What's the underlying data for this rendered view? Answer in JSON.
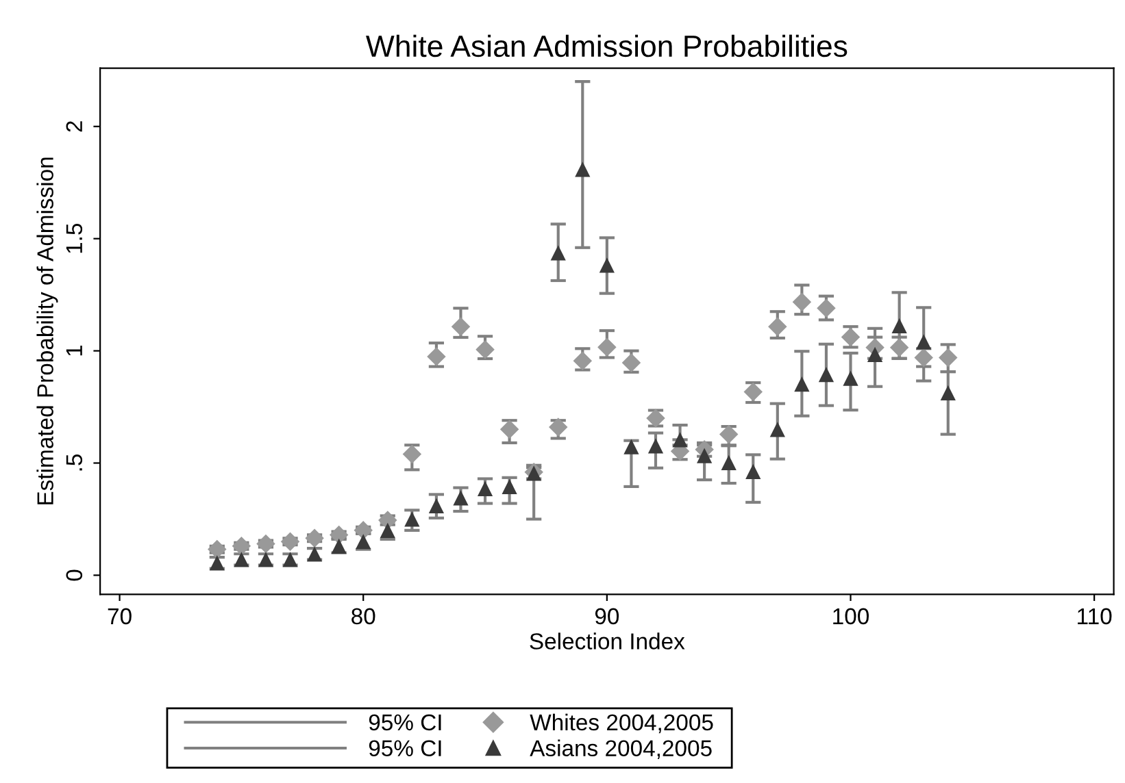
{
  "chart_data": {
    "type": "scatter",
    "title": "White Asian Admission Probabilities",
    "xlabel": "Selection Index",
    "ylabel": "Estimated Probability of Admission",
    "xlim": [
      69.2,
      110.8
    ],
    "xticks": [
      70,
      80,
      90,
      100,
      110
    ],
    "ylim": [
      -0.085,
      2.26
    ],
    "yticks": [
      0,
      {
        "value": 0.5,
        "label": ".5"
      },
      1,
      1.5,
      2
    ],
    "grid": false,
    "legend": "bottom",
    "annotations": [
      "95% CI",
      "95% CI"
    ],
    "series": [
      {
        "name": "Whites 2004,2005",
        "color": "#999999",
        "marker": "diamond",
        "x": [
          74,
          75,
          76,
          77,
          78,
          79,
          80,
          81,
          82,
          83,
          84,
          85,
          86,
          87,
          88,
          89,
          90,
          91,
          92,
          93,
          94,
          95,
          96,
          97,
          98,
          99,
          100,
          101,
          102,
          103,
          104
        ],
        "values": [
          0.116,
          0.13,
          0.14,
          0.15,
          0.165,
          0.18,
          0.2,
          0.245,
          0.54,
          0.974,
          1.108,
          1.006,
          0.65,
          0.46,
          0.66,
          0.955,
          1.016,
          0.947,
          0.7,
          0.553,
          0.56,
          0.628,
          0.817,
          1.108,
          1.218,
          1.19,
          1.061,
          1.015,
          1.015,
          0.97,
          0.97
        ],
        "errors": [
          [
            0.1,
            0.13
          ],
          [
            0.115,
            0.145
          ],
          [
            0.125,
            0.155
          ],
          [
            0.135,
            0.165
          ],
          [
            0.15,
            0.18
          ],
          [
            0.165,
            0.195
          ],
          [
            0.185,
            0.215
          ],
          [
            0.225,
            0.265
          ],
          [
            0.47,
            0.58
          ],
          [
            0.93,
            1.035
          ],
          [
            1.06,
            1.19
          ],
          [
            0.965,
            1.065
          ],
          [
            0.59,
            0.69
          ],
          [
            0.43,
            0.49
          ],
          [
            0.61,
            0.69
          ],
          [
            0.915,
            1.01
          ],
          [
            0.97,
            1.09
          ],
          [
            0.905,
            1.0
          ],
          [
            0.665,
            0.735
          ],
          [
            0.516,
            0.58
          ],
          [
            0.53,
            0.59
          ],
          [
            0.58,
            0.663
          ],
          [
            0.77,
            0.858
          ],
          [
            1.057,
            1.175
          ],
          [
            1.163,
            1.293
          ],
          [
            1.138,
            1.244
          ],
          [
            1.016,
            1.108
          ],
          [
            0.966,
            1.061
          ],
          [
            0.966,
            1.061
          ],
          [
            0.93,
            1.01
          ],
          [
            0.907,
            1.028
          ]
        ]
      },
      {
        "name": "Asians 2004,2005",
        "color": "#3a3a3a",
        "marker": "triangle",
        "x": [
          74,
          75,
          76,
          77,
          78,
          79,
          80,
          81,
          82,
          83,
          84,
          85,
          86,
          87,
          88,
          89,
          90,
          91,
          92,
          93,
          94,
          95,
          96,
          97,
          98,
          99,
          100,
          101,
          102,
          103,
          104
        ],
        "values": [
          0.055,
          0.07,
          0.07,
          0.07,
          0.095,
          0.13,
          0.15,
          0.2,
          0.25,
          0.31,
          0.345,
          0.386,
          0.395,
          0.455,
          1.437,
          1.809,
          1.382,
          0.573,
          0.577,
          0.604,
          0.533,
          0.502,
          0.462,
          0.65,
          0.852,
          0.895,
          0.878,
          0.984,
          1.112,
          1.04,
          0.813
        ],
        "errors": [
          [
            0.03,
            0.08
          ],
          [
            0.045,
            0.095
          ],
          [
            0.045,
            0.095
          ],
          [
            0.045,
            0.095
          ],
          [
            0.07,
            0.12
          ],
          [
            0.1,
            0.16
          ],
          [
            0.115,
            0.185
          ],
          [
            0.16,
            0.24
          ],
          [
            0.2,
            0.29
          ],
          [
            0.255,
            0.36
          ],
          [
            0.285,
            0.39
          ],
          [
            0.32,
            0.43
          ],
          [
            0.32,
            0.435
          ],
          [
            0.25,
            0.48
          ],
          [
            1.313,
            1.565
          ],
          [
            1.46,
            2.2
          ],
          [
            1.256,
            1.504
          ],
          [
            0.395,
            0.6
          ],
          [
            0.478,
            0.634
          ],
          [
            0.604,
            0.669
          ],
          [
            0.425,
            0.58
          ],
          [
            0.41,
            0.577
          ],
          [
            0.325,
            0.537
          ],
          [
            0.518,
            0.765
          ],
          [
            0.71,
            0.998
          ],
          [
            0.756,
            1.03
          ],
          [
            0.736,
            0.99
          ],
          [
            0.841,
            1.1
          ],
          [
            0.966,
            1.26
          ],
          [
            0.866,
            1.193
          ],
          [
            0.628,
            0.907
          ]
        ]
      }
    ]
  }
}
